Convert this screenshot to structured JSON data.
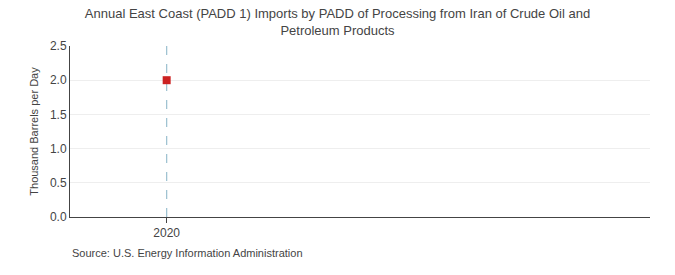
{
  "chart_data": {
    "type": "scatter",
    "title": "Annual East Coast (PADD 1) Imports by PADD of Processing from Iran of Crude Oil and\nPetroleum Products",
    "ylabel": "Thousand Barrels per Day",
    "annotations": [
      "Source: U.S. Energy Information Administration"
    ],
    "x": [
      2020
    ],
    "values": [
      2.0
    ],
    "color": "#cc2222",
    "marker": "square",
    "xlim": [
      2019.7,
      2021.5
    ],
    "xticks": [
      2020
    ],
    "ylim": [
      0.0,
      2.5
    ],
    "yticks": [
      {
        "value": 0.0,
        "label": "0.0"
      },
      0.5,
      {
        "value": 1.0,
        "label": "1.0"
      },
      1.5,
      {
        "value": 2.0,
        "label": "2.0"
      },
      2.5
    ],
    "grid": "y",
    "vline": {
      "x": 2020,
      "color": "#9abfcf",
      "line_style": "dashed"
    }
  }
}
